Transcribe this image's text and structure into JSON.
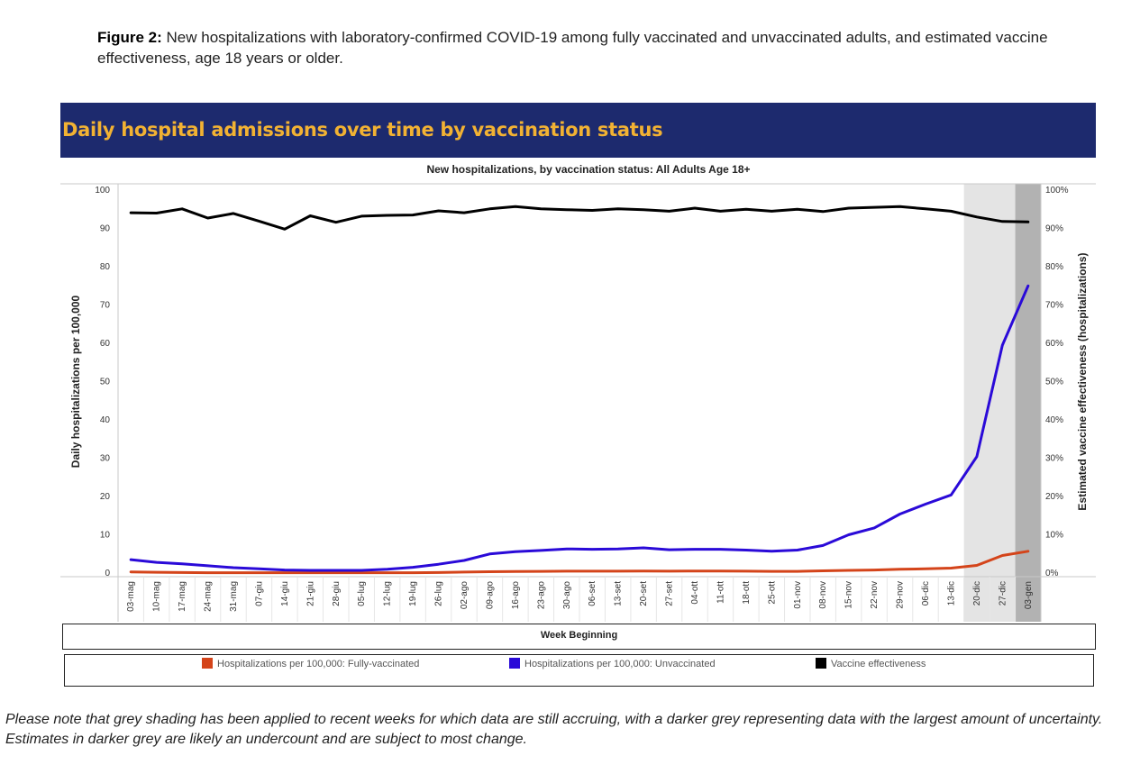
{
  "caption": {
    "label": "Figure 2:",
    "text": "New hospitalizations with laboratory-confirmed COVID-19 among fully vaccinated and unvaccinated adults, and estimated vaccine effectiveness, age 18 years or older."
  },
  "banner": {
    "title": "Daily hospital admissions over time by vaccination status",
    "bg_color": "#1d2a6e",
    "title_color": "#f2b233"
  },
  "footnote": "Please note that grey shading has been applied to recent weeks for which data are still accruing, with a darker grey representing data with the largest amount of uncertainty. Estimates in darker grey are likely an undercount and are subject to most change.",
  "chart_data": {
    "type": "line",
    "title": "New hospitalizations, by vaccination status: All Adults Age 18+",
    "xlabel": "Week Beginning",
    "ylabel": "Daily hospitalizations per 100,000",
    "ylabel_right": "Estimated vaccine effectiveness (hospitalizations)",
    "ylim": [
      0,
      100
    ],
    "ylim_right": [
      0,
      1
    ],
    "yticks": [
      "0",
      "10",
      "20",
      "30",
      "40",
      "50",
      "60",
      "70",
      "80",
      "90",
      "100"
    ],
    "yticks_right": [
      "0%",
      "10%",
      "20%",
      "30%",
      "40%",
      "50%",
      "60%",
      "70%",
      "80%",
      "90%",
      "100%"
    ],
    "categories": [
      "03-mag",
      "10-mag",
      "17-mag",
      "24-mag",
      "31-mag",
      "07-giu",
      "14-giu",
      "21-giu",
      "28-giu",
      "05-lug",
      "12-lug",
      "19-lug",
      "26-lug",
      "02-ago",
      "09-ago",
      "16-ago",
      "23-ago",
      "30-ago",
      "06-set",
      "13-set",
      "20-set",
      "27-set",
      "04-ott",
      "11-ott",
      "18-ott",
      "25-ott",
      "01-nov",
      "08-nov",
      "15-nov",
      "22-nov",
      "29-nov",
      "06-dic",
      "13-dic",
      "20-dic",
      "27-dic",
      "03-gen"
    ],
    "shading": {
      "light_start": "20-dic",
      "dark_start": "03-gen",
      "light_color": "#e4e4e4",
      "dark_color": "#b2b2b2"
    },
    "grid": false,
    "legend_position": "bottom",
    "series": [
      {
        "name": "Hospitalizations per 100,000: Fully-vaccinated",
        "axis": "left",
        "color": "#d4441a",
        "values": [
          0.3,
          0.2,
          0.15,
          0.1,
          0.1,
          0.1,
          0.1,
          0.1,
          0.1,
          0.1,
          0.1,
          0.1,
          0.15,
          0.25,
          0.35,
          0.4,
          0.45,
          0.5,
          0.5,
          0.5,
          0.55,
          0.5,
          0.55,
          0.55,
          0.5,
          0.45,
          0.45,
          0.6,
          0.7,
          0.8,
          1.0,
          1.1,
          1.3,
          2.0,
          4.6,
          5.7
        ]
      },
      {
        "name": "Hospitalizations per 100,000: Unvaccinated",
        "axis": "left",
        "color": "#2a0ad8",
        "values": [
          3.5,
          2.8,
          2.4,
          1.9,
          1.4,
          1.1,
          0.8,
          0.7,
          0.7,
          0.7,
          1.0,
          1.5,
          2.3,
          3.3,
          5.0,
          5.6,
          5.9,
          6.3,
          6.2,
          6.3,
          6.6,
          6.1,
          6.2,
          6.2,
          6.0,
          5.7,
          6.0,
          7.2,
          10.0,
          11.8,
          15.4,
          18.0,
          20.4,
          30.4,
          59.5,
          75.0
        ]
      },
      {
        "name": "Vaccine effectiveness",
        "axis": "right",
        "color": "#000000",
        "values": [
          0.941,
          0.94,
          0.951,
          0.927,
          0.939,
          0.919,
          0.898,
          0.933,
          0.916,
          0.932,
          0.934,
          0.935,
          0.946,
          0.941,
          0.951,
          0.957,
          0.951,
          0.949,
          0.947,
          0.951,
          0.949,
          0.945,
          0.953,
          0.945,
          0.95,
          0.945,
          0.95,
          0.944,
          0.953,
          0.955,
          0.957,
          0.951,
          0.945,
          0.93,
          0.918,
          0.917
        ]
      }
    ]
  }
}
